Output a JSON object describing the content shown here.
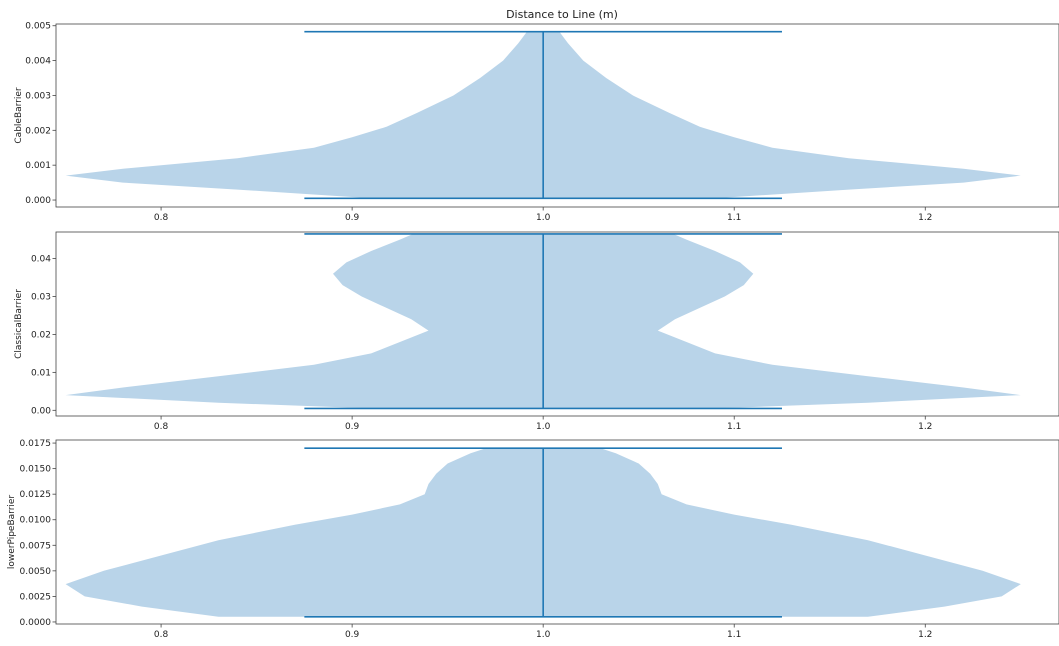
{
  "figure": {
    "title": "Distance to Line (m)"
  },
  "colors": {
    "body_fill": "#b9d4e9",
    "line": "#1f77b4",
    "axes": "#444444"
  },
  "chart_data": [
    {
      "type": "violin",
      "ylabel": "CableBarrier",
      "xlim": [
        0.745,
        1.27
      ],
      "ylim": [
        -0.0002,
        0.00505
      ],
      "xticks": [
        "0.8",
        "0.9",
        "1.0",
        "1.1",
        "1.2"
      ],
      "yticks": [
        "0.000",
        "0.001",
        "0.002",
        "0.003",
        "0.004",
        "0.005"
      ],
      "position": 1.0,
      "min": 5e-05,
      "max": 0.00483,
      "density_profile": [
        [
          5e-05,
          0.09
        ],
        [
          0.0003,
          0.16
        ],
        [
          0.0005,
          0.22
        ],
        [
          0.0007,
          0.25
        ],
        [
          0.0009,
          0.22
        ],
        [
          0.0012,
          0.16
        ],
        [
          0.0015,
          0.12
        ],
        [
          0.0018,
          0.1
        ],
        [
          0.0021,
          0.082
        ],
        [
          0.0025,
          0.066
        ],
        [
          0.003,
          0.047
        ],
        [
          0.0035,
          0.033
        ],
        [
          0.004,
          0.021
        ],
        [
          0.0045,
          0.013
        ],
        [
          0.00483,
          0.0085
        ]
      ]
    },
    {
      "type": "violin",
      "ylabel": "ClassicalBarrier",
      "xlim": [
        0.745,
        1.27
      ],
      "ylim": [
        -0.0015,
        0.047
      ],
      "xticks": [
        "0.8",
        "0.9",
        "1.0",
        "1.1",
        "1.2"
      ],
      "yticks": [
        "0.00",
        "0.01",
        "0.02",
        "0.03",
        "0.04"
      ],
      "position": 1.0,
      "min": 0.0005,
      "max": 0.0465,
      "density_profile": [
        [
          0.0005,
          0.09
        ],
        [
          0.002,
          0.17
        ],
        [
          0.004,
          0.25
        ],
        [
          0.006,
          0.22
        ],
        [
          0.009,
          0.17
        ],
        [
          0.012,
          0.12
        ],
        [
          0.015,
          0.09
        ],
        [
          0.018,
          0.075
        ],
        [
          0.021,
          0.06
        ],
        [
          0.024,
          0.069
        ],
        [
          0.027,
          0.082
        ],
        [
          0.03,
          0.095
        ],
        [
          0.033,
          0.105
        ],
        [
          0.036,
          0.11
        ],
        [
          0.039,
          0.103
        ],
        [
          0.042,
          0.09
        ],
        [
          0.045,
          0.075
        ],
        [
          0.0465,
          0.068
        ]
      ]
    },
    {
      "type": "violin",
      "ylabel": "lowerPipeBarrier",
      "xlim": [
        0.745,
        1.27
      ],
      "ylim": [
        -0.0002,
        0.0178
      ],
      "xticks": [
        "0.8",
        "0.9",
        "1.0",
        "1.1",
        "1.2"
      ],
      "yticks": [
        "0.0000",
        "0.0025",
        "0.0050",
        "0.0075",
        "0.0100",
        "0.0125",
        "0.0150",
        "0.0175"
      ],
      "position": 1.0,
      "min": 0.0005,
      "max": 0.017,
      "density_profile": [
        [
          0.0005,
          0.17
        ],
        [
          0.0015,
          0.21
        ],
        [
          0.0025,
          0.24
        ],
        [
          0.0037,
          0.25
        ],
        [
          0.005,
          0.23
        ],
        [
          0.0065,
          0.2
        ],
        [
          0.008,
          0.17
        ],
        [
          0.0095,
          0.13
        ],
        [
          0.0105,
          0.1
        ],
        [
          0.0115,
          0.075
        ],
        [
          0.0125,
          0.062
        ],
        [
          0.0135,
          0.06
        ],
        [
          0.0145,
          0.056
        ],
        [
          0.0155,
          0.05
        ],
        [
          0.0165,
          0.038
        ],
        [
          0.017,
          0.03
        ]
      ]
    }
  ]
}
